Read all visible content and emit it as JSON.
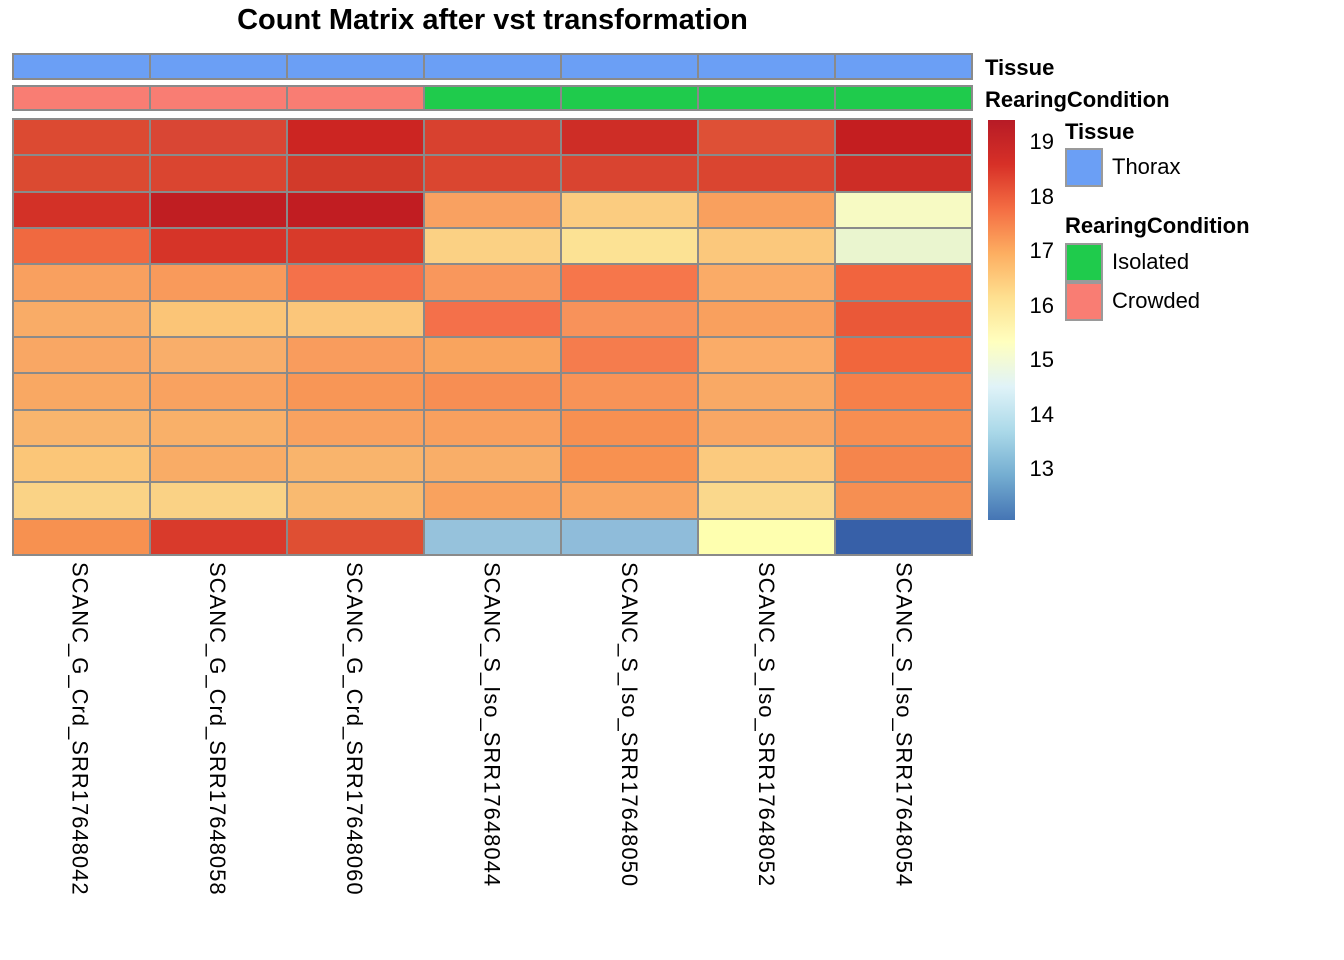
{
  "title": "Count Matrix after vst transformation",
  "annotations": {
    "tissue": {
      "label": "Tissue",
      "cell_colors": [
        "#6B9FF5",
        "#6B9FF5",
        "#6B9FF5",
        "#6B9FF5",
        "#6B9FF5",
        "#6B9FF5",
        "#6B9FF5"
      ]
    },
    "rearing": {
      "label": "RearingCondition",
      "cell_colors": [
        "#F97D73",
        "#F97D73",
        "#F97D73",
        "#1FCB4C",
        "#1FCB4C",
        "#1FCB4C",
        "#1FCB4C"
      ]
    }
  },
  "legend": {
    "tissue_header": "Tissue",
    "tissue_items": [
      {
        "label": "Thorax",
        "color": "#6B9FF5"
      }
    ],
    "rearing_header": "RearingCondition",
    "rearing_items": [
      {
        "label": "Isolated",
        "color": "#1FCB4C"
      },
      {
        "label": "Crowded",
        "color": "#F97D73"
      }
    ],
    "scale_ticks": [
      "19",
      "18",
      "17",
      "16",
      "15",
      "14",
      "13"
    ],
    "colorbar_gradient_top_to_bottom": [
      "#B71B26",
      "#D73027",
      "#F46D43",
      "#FDAE61",
      "#FEE090",
      "#FFFFBF",
      "#E0F3F8",
      "#ABD9E9",
      "#74ADD1",
      "#4575B4"
    ]
  },
  "chart_data": {
    "type": "heatmap",
    "title": "Count Matrix after vst transformation",
    "columns": [
      "SCANC_G_Crd_SRR17648042",
      "SCANC_G_Crd_SRR17648058",
      "SCANC_G_Crd_SRR17648060",
      "SCANC_S_Iso_SRR17648044",
      "SCANC_S_Iso_SRR17648050",
      "SCANC_S_Iso_SRR17648052",
      "SCANC_S_Iso_SRR17648054"
    ],
    "n_rows": 12,
    "row_labels_shown": false,
    "column_annotations": {
      "Tissue": [
        "Thorax",
        "Thorax",
        "Thorax",
        "Thorax",
        "Thorax",
        "Thorax",
        "Thorax"
      ],
      "RearingCondition": [
        "Crowded",
        "Crowded",
        "Crowded",
        "Isolated",
        "Isolated",
        "Isolated",
        "Isolated"
      ]
    },
    "colorscale": {
      "palette": "RdYlBu reversed",
      "tick_values": [
        19,
        18,
        17,
        16,
        15,
        14,
        13
      ],
      "approx_range": [
        12.1,
        19.4
      ]
    },
    "values": [
      [
        18.3,
        18.4,
        18.9,
        18.5,
        18.8,
        18.2,
        19.1
      ],
      [
        18.3,
        18.4,
        18.6,
        18.4,
        18.4,
        18.4,
        18.8
      ],
      [
        18.7,
        19.2,
        19.2,
        17.2,
        16.5,
        17.2,
        15.4
      ],
      [
        17.8,
        18.6,
        18.5,
        16.4,
        16.1,
        16.6,
        15.0
      ],
      [
        17.2,
        17.3,
        17.8,
        17.3,
        17.7,
        17.0,
        17.9
      ],
      [
        17.0,
        16.6,
        16.6,
        17.8,
        17.4,
        17.2,
        18.1
      ],
      [
        17.1,
        17.0,
        17.3,
        17.2,
        17.7,
        17.0,
        17.9
      ],
      [
        17.1,
        17.2,
        17.4,
        17.5,
        17.4,
        17.1,
        17.6
      ],
      [
        16.9,
        17.0,
        17.2,
        17.2,
        17.5,
        17.1,
        17.5
      ],
      [
        16.6,
        17.0,
        16.9,
        17.0,
        17.5,
        16.5,
        17.6
      ],
      [
        16.4,
        16.4,
        16.8,
        17.2,
        17.1,
        16.3,
        17.5
      ],
      [
        17.5,
        18.5,
        18.2,
        13.9,
        13.8,
        15.7,
        12.6
      ]
    ],
    "cell_colors": [
      [
        "#DC4A32",
        "#D94634",
        "#CC2522",
        "#D8412F",
        "#CE2D26",
        "#DE5036",
        "#C41E20"
      ],
      [
        "#DB4A31",
        "#DA4530",
        "#D23A2A",
        "#DA4630",
        "#D94430",
        "#DA4530",
        "#CD2D26"
      ],
      [
        "#D33127",
        "#C01E22",
        "#C11D22",
        "#F9A161",
        "#FBCC80",
        "#F9A05E",
        "#F7FAC3"
      ],
      [
        "#F06940",
        "#D63428",
        "#D83A2A",
        "#FBD184",
        "#FCE294",
        "#FBC87C",
        "#EAF5CF"
      ],
      [
        "#F9A05F",
        "#F99A5B",
        "#F4714A",
        "#F9975C",
        "#F6764B",
        "#FAAB67",
        "#F1643E"
      ],
      [
        "#F9AC67",
        "#FBC577",
        "#FBC67A",
        "#F4704A",
        "#F8925A",
        "#F9A05E",
        "#EA5838"
      ],
      [
        "#F9A764",
        "#F9AE6A",
        "#F99C5D",
        "#F9A45E",
        "#F57C4D",
        "#FAAC68",
        "#F1663C"
      ],
      [
        "#F9A863",
        "#F9A260",
        "#F89656",
        "#F78E53",
        "#F89357",
        "#F9A965",
        "#F68049"
      ],
      [
        "#F9B56D",
        "#F9B069",
        "#F9A260",
        "#F9A05E",
        "#F79051",
        "#F9A764",
        "#F78E51"
      ],
      [
        "#FBC678",
        "#F9AC66",
        "#F9B46C",
        "#F9AE68",
        "#F89150",
        "#FBCA7E",
        "#F5854C"
      ],
      [
        "#FAD386",
        "#FAD285",
        "#F9BA70",
        "#F9A25E",
        "#F9A662",
        "#FAD88C",
        "#F68F52"
      ],
      [
        "#F79150",
        "#D93A2B",
        "#DF4F33",
        "#96C2DC",
        "#8FBCDA",
        "#FEFFAF",
        "#3760A8"
      ]
    ]
  }
}
